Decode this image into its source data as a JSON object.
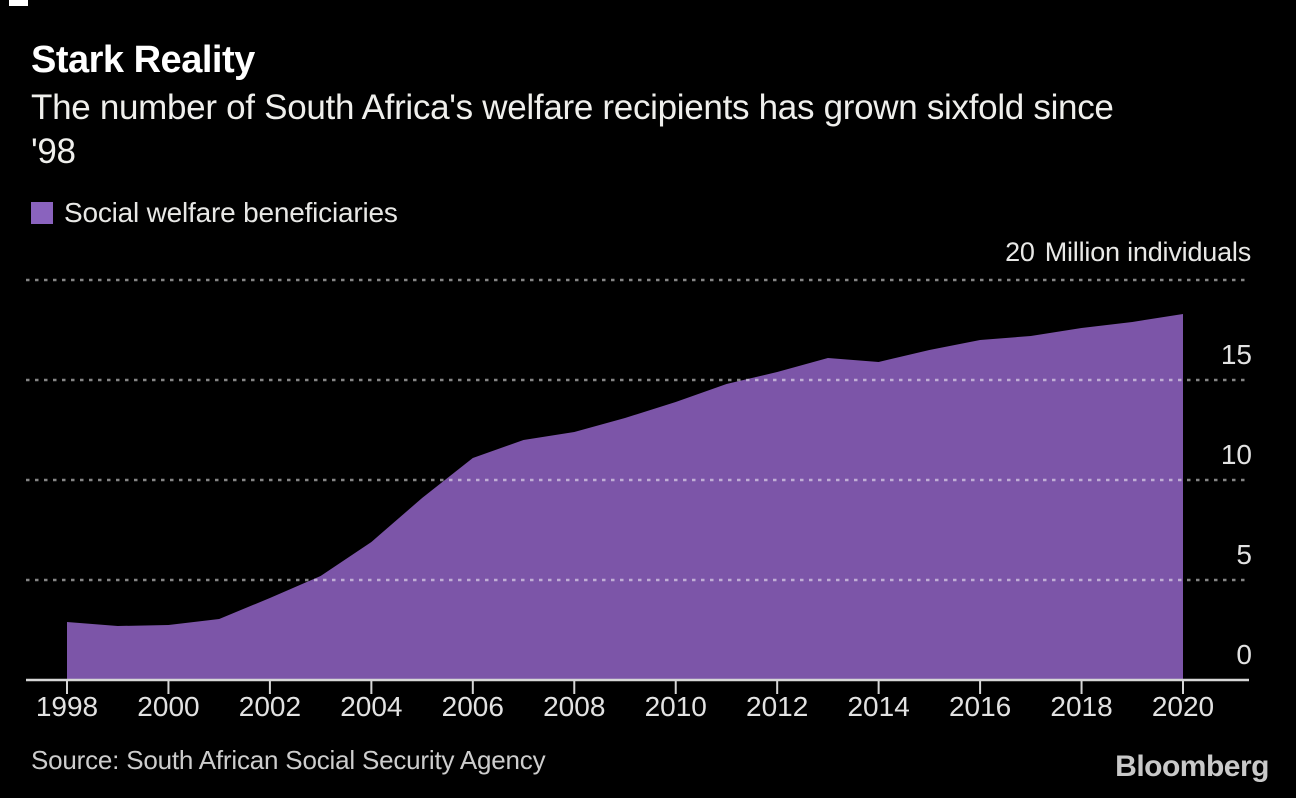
{
  "colors": {
    "background": "#000000",
    "area_fill": "#7c55a8",
    "legend_swatch": "#8a63be",
    "axis_line": "#d6d6d6",
    "gridline": "rgba(255,255,255,0.52)",
    "tick_label": "#e2e2e2"
  },
  "header": {
    "title": "Stark Reality",
    "subtitle_line1": "The number of South Africa's welfare recipients has grown sixfold since",
    "subtitle_line2": "'98"
  },
  "legend": {
    "label": "Social welfare beneficiaries"
  },
  "axis_note": {
    "value": "20",
    "unit": "Million individuals"
  },
  "chart_data": {
    "type": "area",
    "title": "Stark Reality",
    "subtitle": "The number of South Africa's welfare recipients has grown sixfold since '98",
    "xlabel": "",
    "ylabel": "Million individuals",
    "ylim": [
      0,
      20
    ],
    "grid": "dotted-horizontal",
    "legend_position": "top-left",
    "x": [
      1998,
      1999,
      2000,
      2001,
      2002,
      2003,
      2004,
      2005,
      2006,
      2007,
      2008,
      2009,
      2010,
      2011,
      2012,
      2013,
      2014,
      2015,
      2016,
      2017,
      2018,
      2019,
      2020
    ],
    "series": [
      {
        "name": "Social welfare beneficiaries",
        "values": [
          2.9,
          2.7,
          2.75,
          3.05,
          4.1,
          5.2,
          6.9,
          9.1,
          11.1,
          12.0,
          12.4,
          13.1,
          13.9,
          14.8,
          15.4,
          16.1,
          15.9,
          16.5,
          17.0,
          17.2,
          17.6,
          17.9,
          18.3
        ]
      }
    ],
    "xticks": [
      1998,
      2000,
      2002,
      2004,
      2006,
      2008,
      2010,
      2012,
      2014,
      2016,
      2018,
      2020
    ],
    "ytick_labels_right": [
      0,
      5,
      10,
      15
    ],
    "gridline_values": [
      5,
      10,
      15,
      20
    ]
  },
  "footer": {
    "source": "Source: South African Social Security Agency",
    "brand": "Bloomberg"
  }
}
